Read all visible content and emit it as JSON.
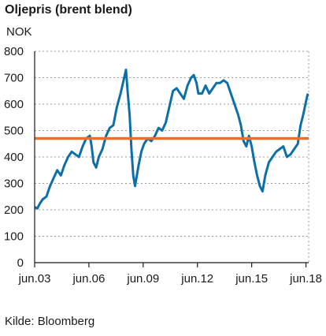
{
  "chart_data": {
    "type": "line",
    "title": "Oljepris (brent blend)",
    "ylabel": "NOK",
    "source": "Kilde: Bloomberg",
    "ylim": [
      0,
      800
    ],
    "yticks": [
      0,
      100,
      200,
      300,
      400,
      500,
      600,
      700,
      800
    ],
    "xlim": [
      2003.45,
      2018.6
    ],
    "xticks": [
      {
        "label": "jun.03",
        "x": 2003.45
      },
      {
        "label": "jun.06",
        "x": 2006.45
      },
      {
        "label": "jun.09",
        "x": 2009.45
      },
      {
        "label": "jun.12",
        "x": 2012.45
      },
      {
        "label": "jun.15",
        "x": 2015.45
      },
      {
        "label": "jun.18",
        "x": 2018.45
      }
    ],
    "grid": true,
    "colors": {
      "series": "#0d6fa8",
      "reference": "#e8702a",
      "grid": "#9a9a9a",
      "axis": "#1a1a1a"
    },
    "series": [
      {
        "x": [
          2003.45,
          2003.6,
          2003.75,
          2003.9,
          2004.1,
          2004.3,
          2004.5,
          2004.7,
          2004.9,
          2005.1,
          2005.3,
          2005.5,
          2005.7,
          2005.9,
          2006.1,
          2006.3,
          2006.5,
          2006.6,
          2006.7,
          2006.85,
          2007.0,
          2007.2,
          2007.4,
          2007.6,
          2007.8,
          2008.0,
          2008.2,
          2008.4,
          2008.5,
          2008.6,
          2008.7,
          2008.8,
          2008.9,
          2009.0,
          2009.1,
          2009.2,
          2009.35,
          2009.5,
          2009.7,
          2009.9,
          2010.1,
          2010.3,
          2010.5,
          2010.7,
          2010.9,
          2011.1,
          2011.3,
          2011.5,
          2011.7,
          2011.9,
          2012.1,
          2012.25,
          2012.4,
          2012.5,
          2012.7,
          2012.9,
          2013.1,
          2013.3,
          2013.5,
          2013.7,
          2013.9,
          2014.1,
          2014.3,
          2014.5,
          2014.7,
          2014.85,
          2015.0,
          2015.15,
          2015.3,
          2015.45,
          2015.6,
          2015.75,
          2015.9,
          2016.05,
          2016.2,
          2016.4,
          2016.6,
          2016.8,
          2017.0,
          2017.2,
          2017.4,
          2017.6,
          2017.8,
          2018.0,
          2018.15,
          2018.3,
          2018.45,
          2018.55
        ],
        "values": [
          210,
          205,
          225,
          240,
          250,
          290,
          320,
          350,
          330,
          370,
          400,
          420,
          410,
          400,
          440,
          470,
          480,
          440,
          380,
          360,
          400,
          430,
          480,
          510,
          520,
          590,
          640,
          700,
          730,
          640,
          560,
          430,
          330,
          290,
          330,
          370,
          420,
          450,
          470,
          460,
          480,
          510,
          500,
          530,
          590,
          650,
          660,
          640,
          620,
          670,
          700,
          710,
          680,
          640,
          640,
          670,
          640,
          660,
          680,
          680,
          690,
          680,
          640,
          600,
          560,
          520,
          460,
          440,
          480,
          440,
          380,
          330,
          290,
          270,
          330,
          380,
          400,
          420,
          430,
          440,
          400,
          410,
          430,
          450,
          520,
          560,
          610,
          640
        ],
        "reference": 470
      }
    ]
  }
}
